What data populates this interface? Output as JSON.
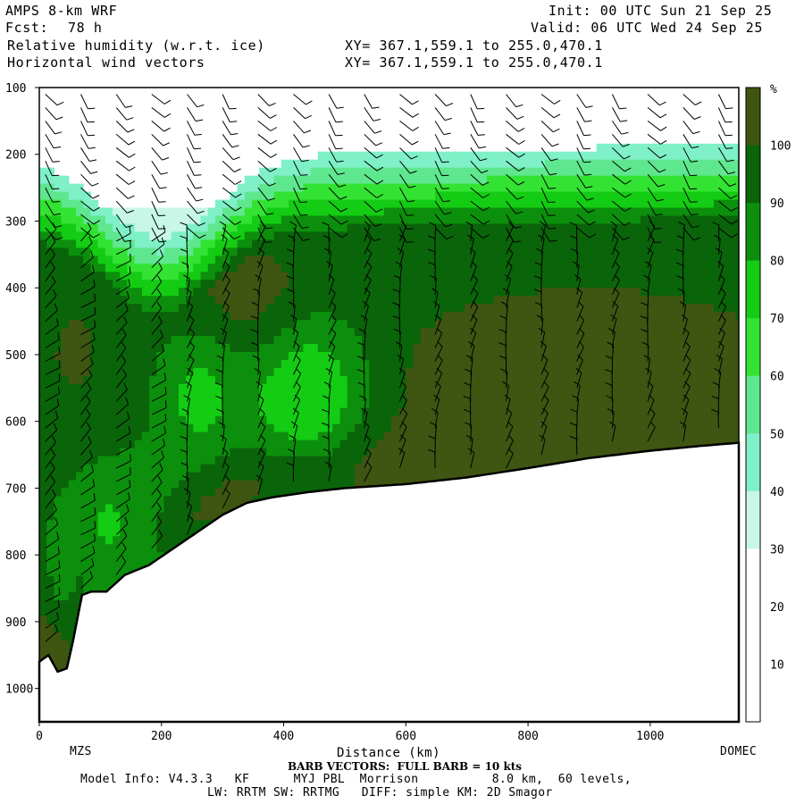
{
  "header": {
    "model": "AMPS 8-km WRF",
    "fcst_label": "Fcst:",
    "fcst_value": "78 h",
    "field1": "Relative humidity (w.r.t. ice)",
    "field2": "Horizontal wind vectors",
    "init": "Init: 00 UTC Sun 21 Sep 25",
    "valid": "Valid: 06 UTC Wed 24 Sep 25",
    "xy1": "XY= 367.1,559.1 to 255.0,470.1",
    "xy2": "XY= 367.1,559.1 to 255.0,470.1"
  },
  "footer": {
    "start_station": "MZS",
    "end_station": "DOMEC",
    "barb_note": "BARB VECTORS:  FULL BARB = 10 kts",
    "model_info": "Model Info: V4.3.3   KF      MYJ PBL  Morrison          8.0 km,  60 levels,",
    "model_info2": "LW: RRTM SW: RRTMG   DIFF: simple KM: 2D Smagor"
  },
  "chart_data": {
    "type": "heatmap",
    "title": "Relative humidity (w.r.t. ice)",
    "xlabel": "Distance (km)",
    "ylabel": "",
    "xlim": [
      0,
      1145
    ],
    "ylim": [
      1050,
      100
    ],
    "y_reversed": true,
    "x_ticks": [
      0,
      200,
      400,
      600,
      800,
      1000
    ],
    "y_ticks": [
      100,
      200,
      300,
      400,
      500,
      600,
      700,
      800,
      900,
      1000
    ],
    "colorbar": {
      "unit": "%",
      "levels": [
        10,
        20,
        30,
        40,
        50,
        60,
        70,
        80,
        90,
        100
      ],
      "colors": [
        "#ffffff",
        "#ffffff",
        "#ffffff",
        "#c8f7e8",
        "#7ff0c8",
        "#5fe78f",
        "#33e333",
        "#13cc13",
        "#0c8f0c",
        "#0a640a",
        "#3f5512"
      ]
    },
    "terrain_pressure": [
      {
        "x": 0,
        "p": 960
      },
      {
        "x": 15,
        "p": 950
      },
      {
        "x": 30,
        "p": 975
      },
      {
        "x": 45,
        "p": 970
      },
      {
        "x": 55,
        "p": 930
      },
      {
        "x": 70,
        "p": 860
      },
      {
        "x": 85,
        "p": 855
      },
      {
        "x": 110,
        "p": 855
      },
      {
        "x": 140,
        "p": 830
      },
      {
        "x": 180,
        "p": 815
      },
      {
        "x": 220,
        "p": 790
      },
      {
        "x": 260,
        "p": 765
      },
      {
        "x": 300,
        "p": 740
      },
      {
        "x": 340,
        "p": 722
      },
      {
        "x": 380,
        "p": 714
      },
      {
        "x": 440,
        "p": 706
      },
      {
        "x": 500,
        "p": 700
      },
      {
        "x": 600,
        "p": 694
      },
      {
        "x": 700,
        "p": 684
      },
      {
        "x": 800,
        "p": 670
      },
      {
        "x": 900,
        "p": 655
      },
      {
        "x": 1000,
        "p": 644
      },
      {
        "x": 1080,
        "p": 637
      },
      {
        "x": 1145,
        "p": 632
      }
    ]
  }
}
